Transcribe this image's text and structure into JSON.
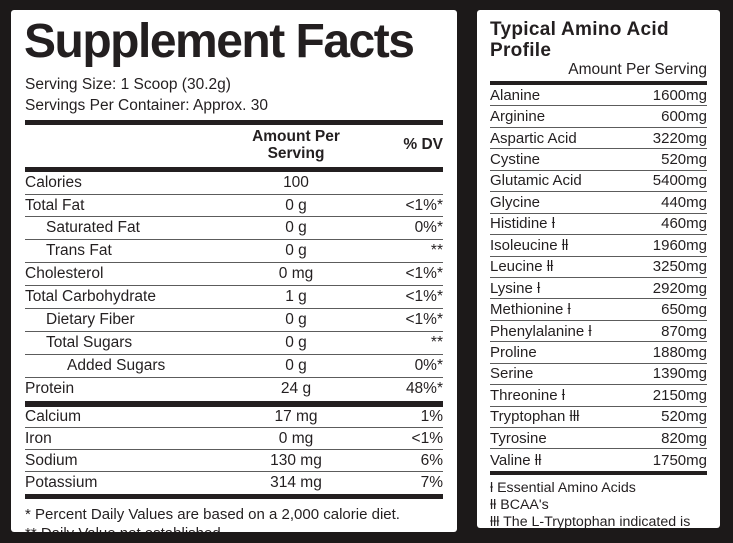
{
  "colors": {
    "background": "#1c1919",
    "panel": "#ffffff",
    "text": "#231f20",
    "rule_thin": "#5c5c5c",
    "rule_thick": "#231f20"
  },
  "supplement_facts": {
    "title": "Supplement Facts",
    "serving_size": "Serving Size: 1 Scoop (30.2g)",
    "servings_per_container": "Servings Per Container: Approx. 30",
    "col_amount": "Amount Per Serving",
    "col_dv": "% DV",
    "nutrients": [
      {
        "name": "Calories",
        "amount": "100",
        "dv": "",
        "indent": 0
      },
      {
        "name": "Total Fat",
        "amount": "0 g",
        "dv": "<1%*",
        "indent": 0
      },
      {
        "name": "Saturated Fat",
        "amount": "0 g",
        "dv": "0%*",
        "indent": 1
      },
      {
        "name": "Trans Fat",
        "amount": "0 g",
        "dv": "**",
        "indent": 1
      },
      {
        "name": "Cholesterol",
        "amount": "0 mg",
        "dv": "<1%*",
        "indent": 0
      },
      {
        "name": "Total Carbohydrate",
        "amount": "1 g",
        "dv": "<1%*",
        "indent": 0
      },
      {
        "name": "Dietary Fiber",
        "amount": "0 g",
        "dv": "<1%*",
        "indent": 1
      },
      {
        "name": "Total Sugars",
        "amount": "0 g",
        "dv": "**",
        "indent": 1
      },
      {
        "name": "Added Sugars",
        "amount": "0 g",
        "dv": "0%*",
        "indent": 2
      },
      {
        "name": "Protein",
        "amount": "24 g",
        "dv": "48%*",
        "indent": 0
      }
    ],
    "minerals": [
      {
        "name": "Calcium",
        "amount": "17 mg",
        "dv": "1%"
      },
      {
        "name": "Iron",
        "amount": "0 mg",
        "dv": "<1%"
      },
      {
        "name": "Sodium",
        "amount": "130 mg",
        "dv": "6%"
      },
      {
        "name": "Potassium",
        "amount": "314 mg",
        "dv": "7%"
      }
    ],
    "footnotes": [
      "* Percent Daily Values are based on a 2,000 calorie diet.",
      "** Daily Value not established."
    ]
  },
  "amino_profile": {
    "title": "Typical Amino Acid Profile",
    "col_amount": "Amount Per Serving",
    "rows": [
      {
        "name": "Alanine",
        "amount": "1600mg"
      },
      {
        "name": "Arginine",
        "amount": "600mg"
      },
      {
        "name": "Aspartic Acid",
        "amount": "3220mg"
      },
      {
        "name": "Cystine",
        "amount": "520mg"
      },
      {
        "name": "Glutamic Acid",
        "amount": "5400mg"
      },
      {
        "name": "Glycine",
        "amount": "440mg"
      },
      {
        "name": "Histidine ƚ",
        "amount": "460mg"
      },
      {
        "name": "Isoleucine ƚƚ",
        "amount": "1960mg"
      },
      {
        "name": "Leucine ƚƚ",
        "amount": "3250mg"
      },
      {
        "name": "Lysine ƚ",
        "amount": "2920mg"
      },
      {
        "name": "Methionine ƚ",
        "amount": "650mg"
      },
      {
        "name": "Phenylalanine ƚ",
        "amount": "870mg"
      },
      {
        "name": "Proline",
        "amount": "1880mg"
      },
      {
        "name": "Serine",
        "amount": "1390mg"
      },
      {
        "name": "Threonine ƚ",
        "amount": "2150mg"
      },
      {
        "name": "Tryptophan ƚƚƚ",
        "amount": "520mg"
      },
      {
        "name": "Tyrosine",
        "amount": "820mg"
      },
      {
        "name": "Valine ƚƚ",
        "amount": "1750mg"
      }
    ],
    "footnotes": [
      "ƚ Essential Amino Acids",
      "ƚƚ BCAA's",
      "ƚƚƚ The L-Tryptophan indicated is from naturally occurring sources of protein."
    ]
  }
}
